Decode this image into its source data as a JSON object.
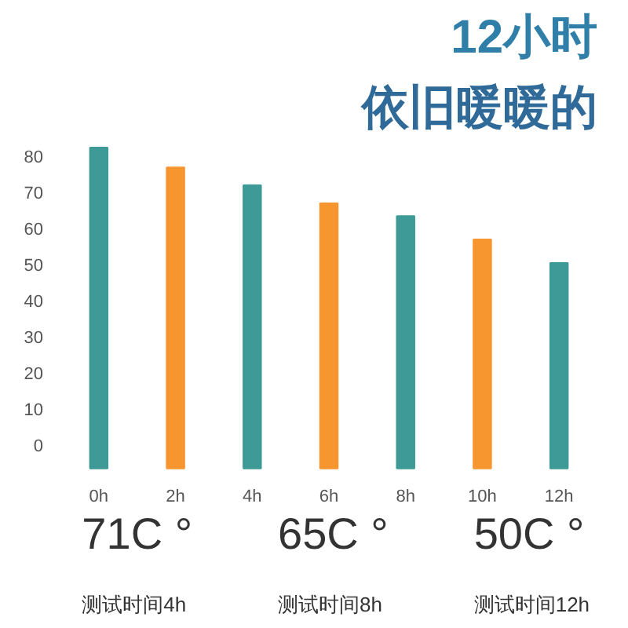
{
  "chart_data": {
    "type": "bar",
    "title": "12小时",
    "subtitle": "依旧暖暖的",
    "categories": [
      "0h",
      "2h",
      "4h",
      "6h",
      "8h",
      "10h",
      "12h"
    ],
    "values": [
      89,
      83.5,
      78.5,
      73.5,
      70,
      63.5,
      57
    ],
    "base": [
      -6.5,
      -6.5,
      -6.5,
      -6.5,
      -6.5,
      -6.5,
      -6.5
    ],
    "colors": [
      "#3d9a96",
      "#f7952f",
      "#3d9a96",
      "#f7952f",
      "#3d9a96",
      "#f7952f",
      "#3d9a96"
    ],
    "ylim": [
      -7,
      84
    ],
    "yticks": [
      0,
      10,
      20,
      30,
      40,
      50,
      60,
      70,
      80
    ],
    "grid": false,
    "annotations": [
      "71C °",
      "测试时间4h",
      "65C °",
      "测试时间8h",
      "50C °",
      "测试时间12h"
    ]
  }
}
